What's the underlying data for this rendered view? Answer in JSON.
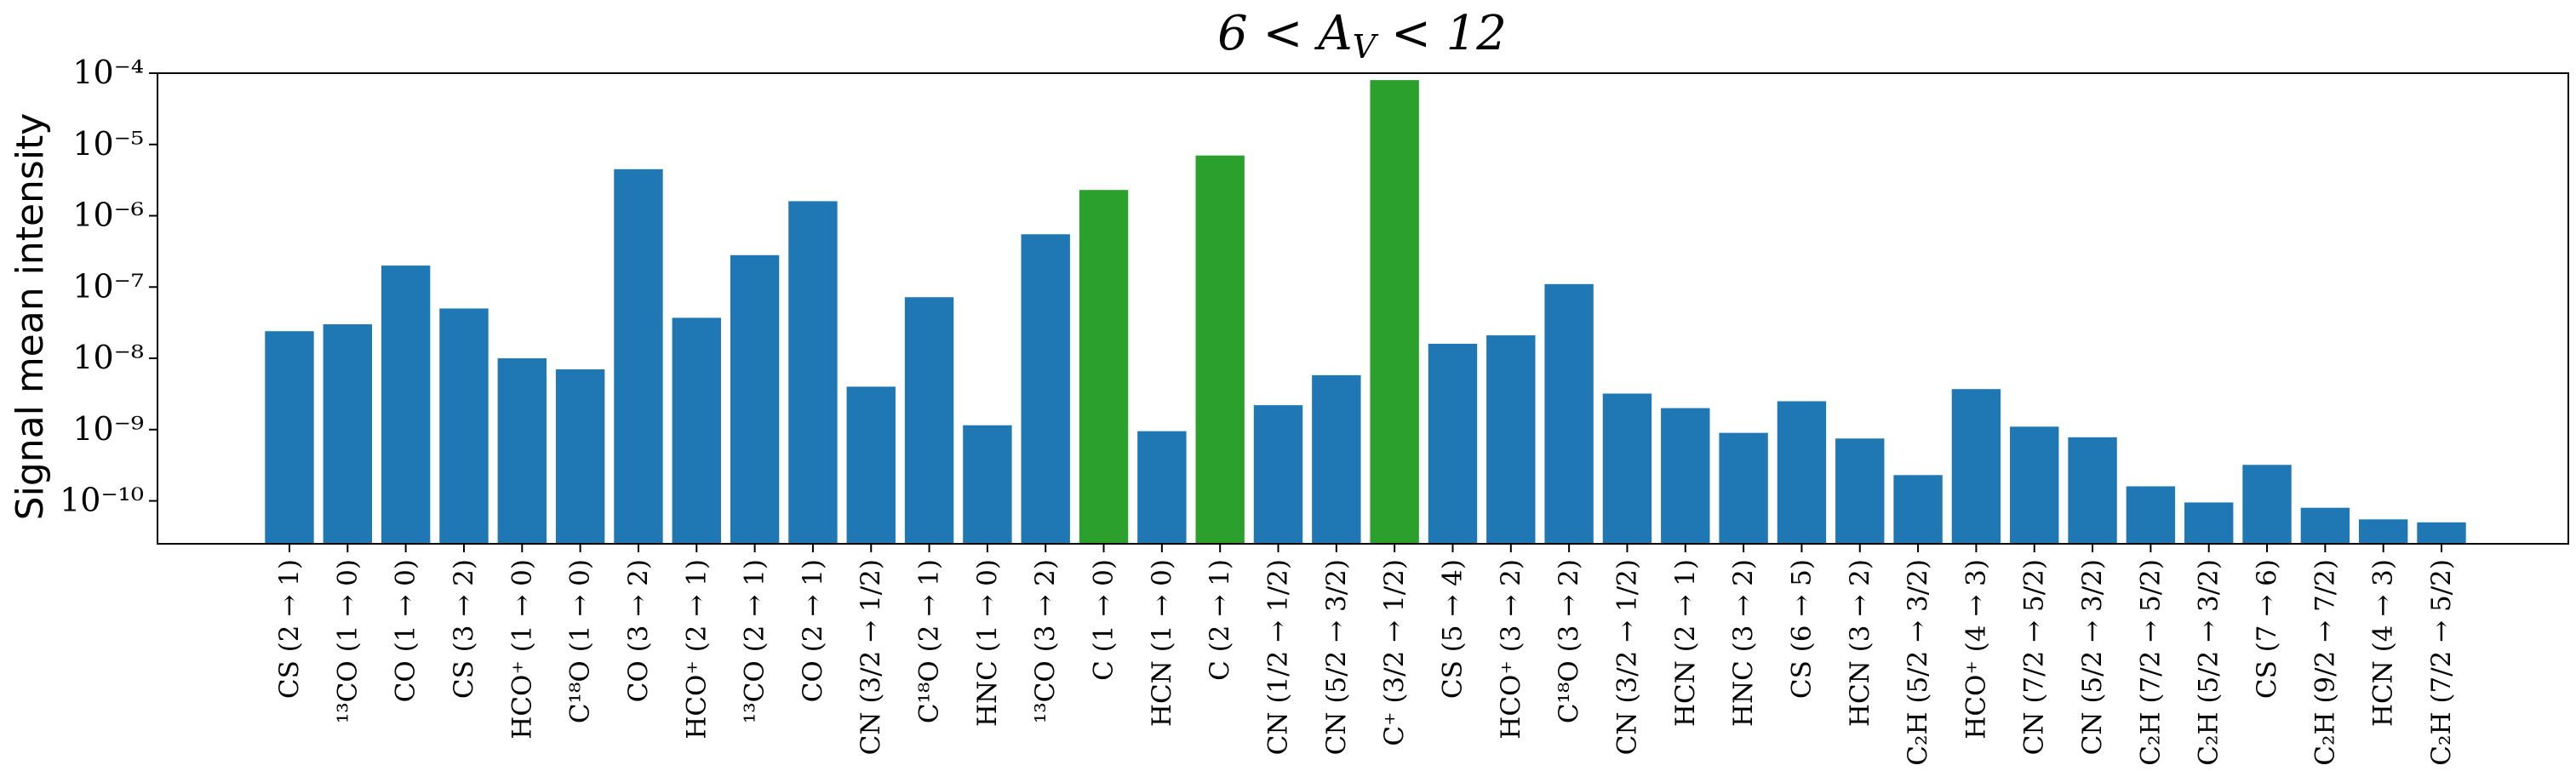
{
  "chart_data": {
    "type": "bar",
    "title": "6 < A_V < 12",
    "xlabel": "",
    "ylabel": "Signal mean intensity",
    "yscale": "log",
    "ylim": [
      2.5e-11,
      0.0001
    ],
    "yticks": [
      1e-10,
      1e-09,
      1e-08,
      1e-07,
      1e-06,
      1e-05,
      0.0001
    ],
    "ytick_labels": [
      "10⁻¹⁰",
      "10⁻⁹",
      "10⁻⁸",
      "10⁻⁷",
      "10⁻⁶",
      "10⁻⁵",
      "10⁻⁴"
    ],
    "colors": {
      "default": "#1f77b4",
      "highlight": "#2ca02c"
    },
    "categories": [
      "CS (2 → 1)",
      "¹³CO (1 → 0)",
      "CO (1 → 0)",
      "CS (3 → 2)",
      "HCO⁺ (1 → 0)",
      "C¹⁸O (1 → 0)",
      "CO (3 → 2)",
      "HCO⁺ (2 → 1)",
      "¹³CO (2 → 1)",
      "CO (2 → 1)",
      "CN (3/2 → 1/2)",
      "C¹⁸O (2 → 1)",
      "HNC (1 → 0)",
      "¹³CO (3 → 2)",
      "C (1 → 0)",
      "HCN (1 → 0)",
      "C (2 → 1)",
      "CN (1/2 → 1/2)",
      "CN (5/2 → 3/2)",
      "C⁺ (3/2 → 1/2)",
      "CS (5 → 4)",
      "HCO⁺ (3 → 2)",
      "C¹⁸O (3 → 2)",
      "CN (3/2 → 1/2)",
      "HCN (2 → 1)",
      "HNC (3 → 2)",
      "CS (6 → 5)",
      "HCN (3 → 2)",
      "C₂H (5/2 → 3/2)",
      "HCO⁺ (4 → 3)",
      "CN (7/2 → 5/2)",
      "CN (5/2 → 3/2)",
      "C₂H (7/2 → 5/2)",
      "C₂H (5/2 → 3/2)",
      "CS (7 → 6)",
      "C₂H (9/2 → 7/2)",
      "HCN (4 → 3)",
      "C₂H (7/2 → 5/2)"
    ],
    "values": [
      2.4e-08,
      3e-08,
      2e-07,
      5e-08,
      1e-08,
      7e-09,
      4.5e-06,
      3.7e-08,
      2.8e-07,
      1.6e-06,
      4e-09,
      7.2e-08,
      1.15e-09,
      5.5e-07,
      2.3e-06,
      9.5e-10,
      7e-06,
      2.2e-09,
      5.8e-09,
      8e-05,
      1.6e-08,
      2.1e-08,
      1.1e-07,
      3.2e-09,
      2e-09,
      9e-10,
      2.5e-09,
      7.5e-10,
      2.3e-10,
      3.7e-09,
      1.1e-09,
      7.8e-10,
      1.6e-10,
      9.5e-11,
      3.2e-10,
      8e-11,
      5.5e-11,
      5e-11
    ],
    "highlighted": [
      "C (1 → 0)",
      "C (2 → 1)",
      "C⁺ (3/2 → 1/2)"
    ]
  }
}
